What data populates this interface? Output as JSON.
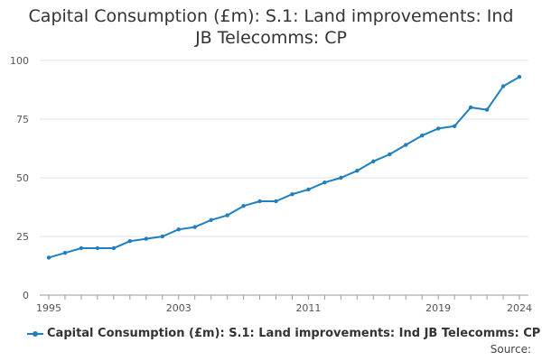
{
  "chart_data": {
    "type": "line",
    "title": "Capital Consumption (£m): S.1: Land improvements: Ind JB Telecomms: CP",
    "xlabel": "",
    "ylabel": "",
    "ylim": [
      0,
      100
    ],
    "xlim": [
      1995,
      2024
    ],
    "grid": true,
    "y_ticks": [
      0,
      25,
      50,
      75,
      100
    ],
    "x_tick_labels": [
      "1995",
      "2003",
      "2011",
      "2019",
      "2024"
    ],
    "series": [
      {
        "name": "Capital Consumption (£m): S.1: Land improvements: Ind JB Telecomms: CP",
        "color": "#1f7fc0",
        "x": [
          1995,
          1996,
          1997,
          1998,
          1999,
          2000,
          2001,
          2002,
          2003,
          2004,
          2005,
          2006,
          2007,
          2008,
          2009,
          2010,
          2011,
          2012,
          2013,
          2014,
          2015,
          2016,
          2017,
          2018,
          2019,
          2020,
          2021,
          2022,
          2023,
          2024
        ],
        "values": [
          16,
          18,
          20,
          20,
          20,
          23,
          24,
          25,
          28,
          29,
          32,
          34,
          38,
          40,
          40,
          43,
          45,
          48,
          50,
          53,
          57,
          60,
          64,
          68,
          71,
          72,
          80,
          79,
          89,
          93
        ]
      }
    ],
    "legend_position": "bottom",
    "source_label": "Source:"
  }
}
